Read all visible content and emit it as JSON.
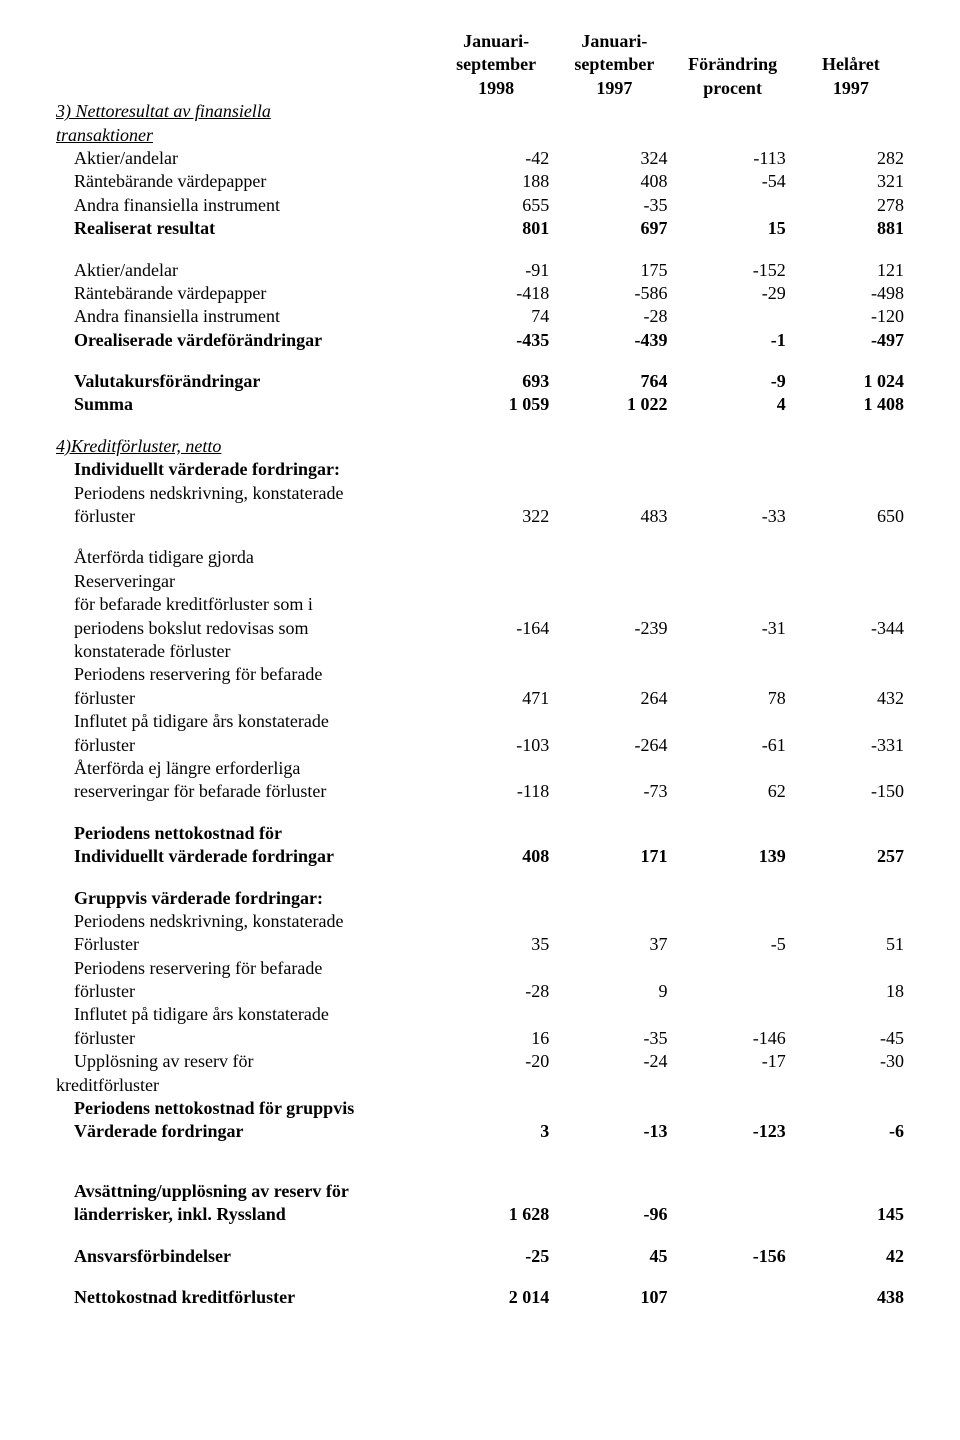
{
  "headers": {
    "h1_a": "Januari-",
    "h1_b": "september",
    "h1_c": "1998",
    "h2_a": "Januari-",
    "h2_b": "september",
    "h2_c": "1997",
    "h3_a": "Förändring",
    "h3_b": "procent",
    "h4_a": "Helåret",
    "h4_b": "1997"
  },
  "s1": {
    "title": "3) Nettoresultat av finansiella",
    "title2": "transaktioner",
    "r1": {
      "l": "Aktier/andelar",
      "v": [
        "-42",
        "324",
        "-113",
        "282"
      ]
    },
    "r2": {
      "l": "Räntebärande värdepapper",
      "v": [
        "188",
        "408",
        "-54",
        "321"
      ]
    },
    "r3": {
      "l": "Andra finansiella instrument",
      "v": [
        "655",
        "-35",
        "",
        "278"
      ]
    },
    "r4": {
      "l": "Realiserat resultat",
      "v": [
        "801",
        "697",
        "15",
        "881"
      ]
    },
    "r5": {
      "l": "Aktier/andelar",
      "v": [
        "-91",
        "175",
        "-152",
        "121"
      ]
    },
    "r6": {
      "l": "Räntebärande värdepapper",
      "v": [
        "-418",
        "-586",
        "-29",
        "-498"
      ]
    },
    "r7": {
      "l": "Andra finansiella instrument",
      "v": [
        "74",
        "-28",
        "",
        "-120"
      ]
    },
    "r8": {
      "l": "Orealiserade värdeförändringar",
      "v": [
        "-435",
        "-439",
        "-1",
        "-497"
      ]
    },
    "r9": {
      "l": "Valutakursförändringar",
      "v": [
        "693",
        "764",
        "-9",
        "1 024"
      ]
    },
    "r10": {
      "l": "Summa",
      "v": [
        "1 059",
        "1 022",
        "4",
        "1 408"
      ]
    }
  },
  "s2": {
    "title": "4)Kreditförluster, netto",
    "g1": "Individuellt värderade fordringar:",
    "r1a": "Periodens nedskrivning, konstaterade",
    "r1b": "förluster",
    "r1v": [
      "322",
      "483",
      "-33",
      "650"
    ],
    "r2a": "Återförda tidigare gjorda",
    "r2b": "Reserveringar",
    "r2c": "för befarade kreditförluster som i",
    "r2d": "periodens bokslut redovisas som",
    "r2v": [
      "-164",
      "-239",
      "-31",
      "-344"
    ],
    "r2e": "konstaterade förluster",
    "r3a": "Periodens reservering för befarade",
    "r3b": "förluster",
    "r3v": [
      "471",
      "264",
      "78",
      "432"
    ],
    "r4a": "Influtet på tidigare års konstaterade",
    "r4b": "förluster",
    "r4v": [
      "-103",
      "-264",
      "-61",
      "-331"
    ],
    "r5a": "Återförda ej längre erforderliga",
    "r5b": "reserveringar för befarade förluster",
    "r5v": [
      "-118",
      "-73",
      "62",
      "-150"
    ],
    "r6a": "Periodens nettokostnad för",
    "r6b": "Individuellt värderade fordringar",
    "r6v": [
      "408",
      "171",
      "139",
      "257"
    ],
    "g2": "Gruppvis värderade fordringar:",
    "r7a": "Periodens nedskrivning, konstaterade",
    "r7b": "Förluster",
    "r7v": [
      "35",
      "37",
      "-5",
      "51"
    ],
    "r8a": "Periodens reservering för befarade",
    "r8b": "förluster",
    "r8v": [
      "-28",
      "9",
      "",
      "18"
    ],
    "r9a": "Influtet på tidigare års konstaterade",
    "r9b": "förluster",
    "r9v": [
      "16",
      "-35",
      "-146",
      "-45"
    ],
    "r10a": "Upplösning av reserv för",
    "r10v": [
      "-20",
      "-24",
      "-17",
      "-30"
    ],
    "r10b": "kreditförluster",
    "r11a": "Periodens nettokostnad för gruppvis",
    "r11b": "Värderade fordringar",
    "r11v": [
      "3",
      "-13",
      "-123",
      "-6"
    ],
    "r12a": "Avsättning/upplösning av reserv för",
    "r12b": "länderrisker, inkl. Ryssland",
    "r12v": [
      "1 628",
      "-96",
      "",
      "145"
    ],
    "r13": "Ansvarsförbindelser",
    "r13v": [
      "-25",
      "45",
      "-156",
      "42"
    ],
    "r14": "Nettokostnad kreditförluster",
    "r14v": [
      "2 014",
      "107",
      "",
      "438"
    ]
  }
}
